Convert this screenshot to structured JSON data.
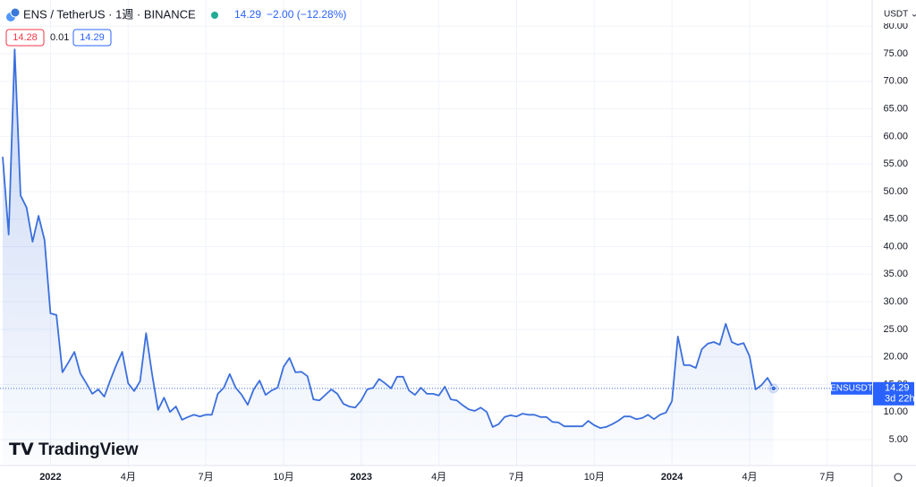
{
  "chart_data": {
    "type": "line",
    "symbol": "ENS / TetherUS · 1週 · BINANCE",
    "last_price": 14.29,
    "change": "−2.00 (−12.28%)",
    "bid": 14.28,
    "spread": 0.01,
    "ask": 14.29,
    "currency": "USDT ⌄",
    "ticker": "ENSUSDT",
    "countdown": "3d 22h",
    "logo": "TradingView",
    "categories": [
      null,
      null,
      null,
      null,
      null,
      null,
      null,
      null,
      "2022",
      null,
      null,
      null,
      null,
      null,
      null,
      null,
      null,
      null,
      null,
      null,
      null,
      "4月",
      null,
      null,
      null,
      null,
      null,
      null,
      null,
      null,
      null,
      null,
      null,
      null,
      "7月",
      null,
      null,
      null,
      null,
      null,
      null,
      null,
      null,
      null,
      null,
      null,
      null,
      "10月",
      null,
      null,
      null,
      null,
      null,
      null,
      null,
      null,
      null,
      null,
      null,
      null,
      "2023",
      null,
      null,
      null,
      null,
      null,
      null,
      null,
      null,
      null,
      null,
      null,
      null,
      "4月",
      null,
      null,
      null,
      null,
      null,
      null,
      null,
      null,
      null,
      null,
      null,
      null,
      "7月",
      null,
      null,
      null,
      null,
      null,
      null,
      null,
      null,
      null,
      null,
      null,
      null,
      "10月",
      null,
      null,
      null,
      null,
      null,
      null,
      null,
      null,
      null,
      null,
      null,
      null,
      "2024",
      null,
      null,
      null,
      null,
      null,
      null,
      null,
      null,
      null,
      null,
      null,
      null,
      "4月",
      null,
      null,
      null,
      null,
      null,
      null,
      null,
      null,
      null,
      null,
      null,
      null,
      "7月",
      null,
      null,
      null,
      null,
      null,
      null,
      null,
      null
    ],
    "series": [
      {
        "name": "ENSUSDT",
        "color": "#3b6fdc",
        "values": [
          56.3,
          42.2,
          75.8,
          49.3,
          47.1,
          40.9,
          45.6,
          41.2,
          27.9,
          27.6,
          17.2,
          19.0,
          20.9,
          17.0,
          15.2,
          13.3,
          14.1,
          12.8,
          15.7,
          18.5,
          20.9,
          15.2,
          13.8,
          15.6,
          24.3,
          16.9,
          10.4,
          12.6,
          10.0,
          11.0,
          8.6,
          9.1,
          9.5,
          9.2,
          9.5,
          9.5,
          13.3,
          14.4,
          16.9,
          14.4,
          13.1,
          11.3,
          14.1,
          15.7,
          13.1,
          13.9,
          14.4,
          18.2,
          19.8,
          17.2,
          17.3,
          16.5,
          12.3,
          12.1,
          13.1,
          14.1,
          13.3,
          11.5,
          11.0,
          10.8,
          12.1,
          14.1,
          14.4,
          16.0,
          15.2,
          14.3,
          16.4,
          16.4,
          13.9,
          13.1,
          14.4,
          13.3,
          13.3,
          13.0,
          14.6,
          12.3,
          12.1,
          11.2,
          10.5,
          10.2,
          10.8,
          10.0,
          7.3,
          7.8,
          9.1,
          9.4,
          9.2,
          9.7,
          9.5,
          9.5,
          9.1,
          9.1,
          8.2,
          8.1,
          7.4,
          7.4,
          7.4,
          7.4,
          8.4,
          7.6,
          7.1,
          7.3,
          7.8,
          8.4,
          9.2,
          9.2,
          8.7,
          8.9,
          9.5,
          8.7,
          9.5,
          9.9,
          12.0,
          23.7,
          18.5,
          18.5,
          18.0,
          21.4,
          22.4,
          22.7,
          22.2,
          26.0,
          22.7,
          22.2,
          22.5,
          20.1,
          14.1,
          14.9,
          16.2,
          14.29,
          null,
          null,
          null,
          null,
          null,
          null,
          null,
          null,
          null,
          null,
          null,
          null,
          null,
          null,
          null,
          null,
          null
        ]
      }
    ],
    "ylim": [
      0,
      81
    ],
    "yticks": [
      {
        "value": 5,
        "label": "5.00"
      },
      {
        "value": 10,
        "label": "10.00"
      },
      {
        "value": 15,
        "label": "15.00"
      },
      {
        "value": 20,
        "label": "20.00"
      },
      {
        "value": 25,
        "label": "25.00"
      },
      {
        "value": 30,
        "label": "30.00"
      },
      {
        "value": 35,
        "label": "35.00"
      },
      {
        "value": 40,
        "label": "40.00"
      },
      {
        "value": 45,
        "label": "45.00"
      },
      {
        "value": 50,
        "label": "50.00"
      },
      {
        "value": 55,
        "label": "55.00"
      },
      {
        "value": 60,
        "label": "60.00"
      },
      {
        "value": 65,
        "label": "65.00"
      },
      {
        "value": 70,
        "label": "70.00"
      },
      {
        "value": 75,
        "label": "75.00"
      },
      {
        "value": 80,
        "label": "80.00"
      }
    ],
    "grid": true
  }
}
